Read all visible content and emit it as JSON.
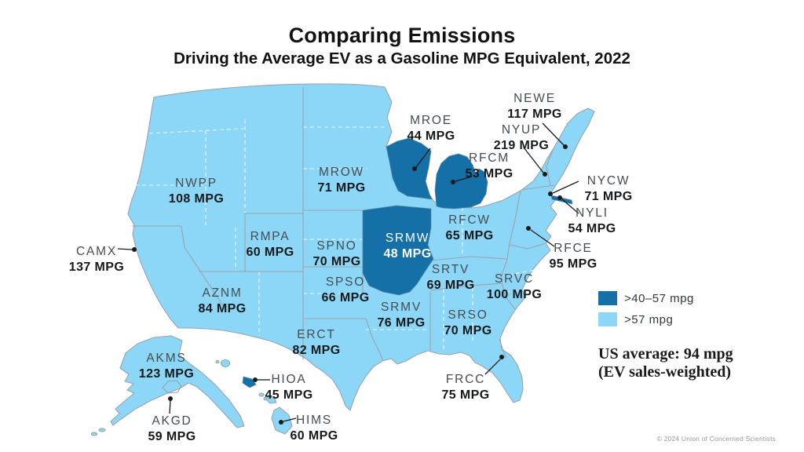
{
  "title": "Comparing Emissions",
  "subtitle": "Driving the Average EV as a Gasoline MPG Equivalent, 2022",
  "footer": "© 2024 Union of Concerned Scientists",
  "legend": {
    "items": [
      {
        "label": ">40–57 mpg",
        "color": "#1470A6"
      },
      {
        "label": ">57 mpg",
        "color": "#8CD7F7"
      }
    ],
    "note_line1": "US average: 94 mpg",
    "note_line2": "(EV sales-weighted)"
  },
  "map_colors": {
    "land": "#8CD7F7",
    "highlight": "#1470A6",
    "border": "#9BA3A8",
    "background": "#FFFFFF"
  },
  "chart_data": {
    "type": "choropleth-map",
    "title": "Comparing Emissions",
    "subtitle": "Driving the Average EV as a Gasoline MPG Equivalent, 2022",
    "unit": "mpg (gasoline equivalent)",
    "us_average_note": "US average: 94 mpg (EV sales-weighted)",
    "legend_bands": [
      ">40–57 mpg",
      ">57 mpg"
    ],
    "regions": [
      {
        "code": "NEWE",
        "value": 117,
        "label": "117 MPG",
        "band": ">57 mpg"
      },
      {
        "code": "NYUP",
        "value": 219,
        "label": "219 MPG",
        "band": ">57 mpg"
      },
      {
        "code": "MROE",
        "value": 44,
        "label": "44 MPG",
        "band": ">40–57 mpg"
      },
      {
        "code": "RFCM",
        "value": 53,
        "label": "53 MPG",
        "band": ">40–57 mpg"
      },
      {
        "code": "NYCW",
        "value": 71,
        "label": "71 MPG",
        "band": ">57 mpg"
      },
      {
        "code": "NYLI",
        "value": 54,
        "label": "54 MPG",
        "band": ">40–57 mpg"
      },
      {
        "code": "MROW",
        "value": 71,
        "label": "71 MPG",
        "band": ">57 mpg"
      },
      {
        "code": "NWPP",
        "value": 108,
        "label": "108 MPG",
        "band": ">57 mpg"
      },
      {
        "code": "RFCW",
        "value": 65,
        "label": "65 MPG",
        "band": ">57 mpg"
      },
      {
        "code": "RMPA",
        "value": 60,
        "label": "60 MPG",
        "band": ">57 mpg"
      },
      {
        "code": "SPNO",
        "value": 70,
        "label": "70 MPG",
        "band": ">57 mpg"
      },
      {
        "code": "SRMW",
        "value": 48,
        "label": "48 MPG",
        "band": ">40–57 mpg"
      },
      {
        "code": "CAMX",
        "value": 137,
        "label": "137 MPG",
        "band": ">57 mpg"
      },
      {
        "code": "RFCE",
        "value": 95,
        "label": "95 MPG",
        "band": ">57 mpg"
      },
      {
        "code": "SRTV",
        "value": 69,
        "label": "69 MPG",
        "band": ">57 mpg"
      },
      {
        "code": "SRVC",
        "value": 100,
        "label": "100 MPG",
        "band": ">57 mpg"
      },
      {
        "code": "AZNM",
        "value": 84,
        "label": "84 MPG",
        "band": ">57 mpg"
      },
      {
        "code": "SPSO",
        "value": 66,
        "label": "66 MPG",
        "band": ">57 mpg"
      },
      {
        "code": "SRMV",
        "value": 76,
        "label": "76 MPG",
        "band": ">57 mpg"
      },
      {
        "code": "SRSO",
        "value": 70,
        "label": "70 MPG",
        "band": ">57 mpg"
      },
      {
        "code": "ERCT",
        "value": 82,
        "label": "82 MPG",
        "band": ">57 mpg"
      },
      {
        "code": "AKMS",
        "value": 123,
        "label": "123 MPG",
        "band": ">57 mpg"
      },
      {
        "code": "HIOA",
        "value": 45,
        "label": "45 MPG",
        "band": ">40–57 mpg"
      },
      {
        "code": "AKGD",
        "value": 59,
        "label": "59 MPG",
        "band": ">57 mpg"
      },
      {
        "code": "HIMS",
        "value": 60,
        "label": "60 MPG",
        "band": ">57 mpg"
      },
      {
        "code": "FRCC",
        "value": 75,
        "label": "75 MPG",
        "band": ">57 mpg"
      }
    ]
  }
}
